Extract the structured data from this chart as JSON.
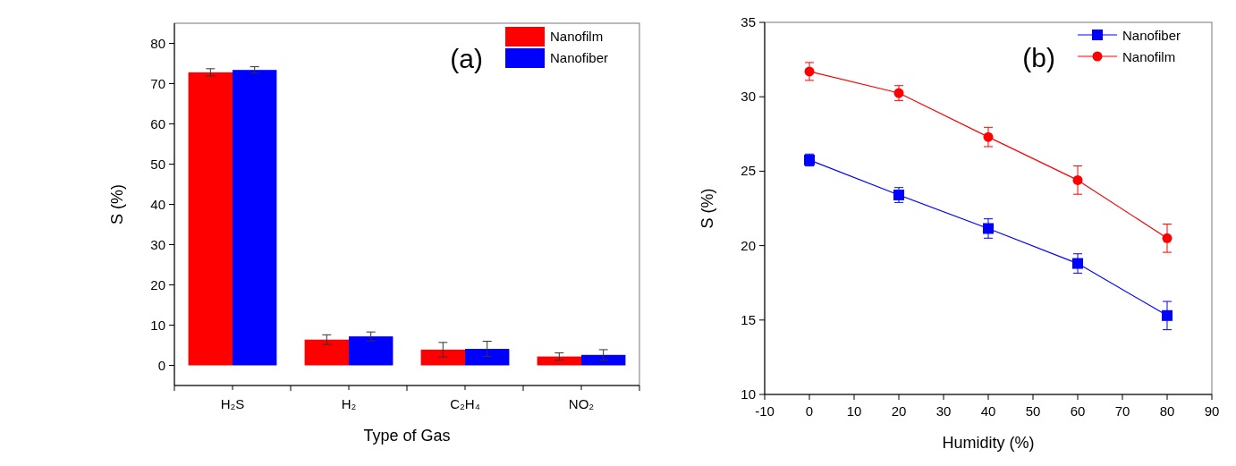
{
  "chart_data": [
    {
      "type": "bar",
      "xlabel": "Type of Gas",
      "ylabel": "S (%)",
      "annotations": [
        "(a)"
      ],
      "categories": [
        "H₂S",
        "H₂",
        "C₂H₄",
        "NO₂"
      ],
      "series": [
        {
          "name": "Nanofilm",
          "color": "#ff0000",
          "values": [
            72.8,
            6.4,
            3.9,
            2.2
          ],
          "errors": [
            0.9,
            1.2,
            1.8,
            0.9
          ]
        },
        {
          "name": "Nanofiber",
          "color": "#0000ff",
          "values": [
            73.4,
            7.2,
            4.1,
            2.6
          ],
          "errors": [
            0.8,
            1.1,
            1.9,
            1.3
          ]
        }
      ],
      "ylim": [
        -5,
        85
      ],
      "yticks": [
        0,
        10,
        20,
        30,
        40,
        50,
        60,
        70,
        80
      ],
      "legend": "top right",
      "grid": false
    },
    {
      "type": "line",
      "xlabel": "Humidity (%)",
      "ylabel": "S (%)",
      "annotations": [
        "(b)"
      ],
      "x": [
        0,
        20,
        40,
        60,
        80
      ],
      "series": [
        {
          "name": "Nanofiber",
          "color": "#0000ff",
          "marker": "square",
          "values": [
            25.75,
            23.4,
            21.15,
            18.8,
            15.3
          ],
          "errors": [
            0.4,
            0.5,
            0.65,
            0.65,
            0.95
          ]
        },
        {
          "name": "Nanofilm",
          "color": "#ff0000",
          "marker": "circle",
          "values": [
            31.7,
            30.25,
            27.3,
            24.4,
            20.5
          ],
          "errors": [
            0.6,
            0.5,
            0.65,
            0.95,
            0.95
          ]
        }
      ],
      "xlim": [
        -10,
        90
      ],
      "xticks": [
        -10,
        0,
        10,
        20,
        30,
        40,
        50,
        60,
        70,
        80,
        90
      ],
      "ylim": [
        10,
        35
      ],
      "yticks": [
        10,
        15,
        20,
        25,
        30,
        35
      ],
      "legend": "top right",
      "grid": false,
      "line_style": "solid"
    }
  ]
}
